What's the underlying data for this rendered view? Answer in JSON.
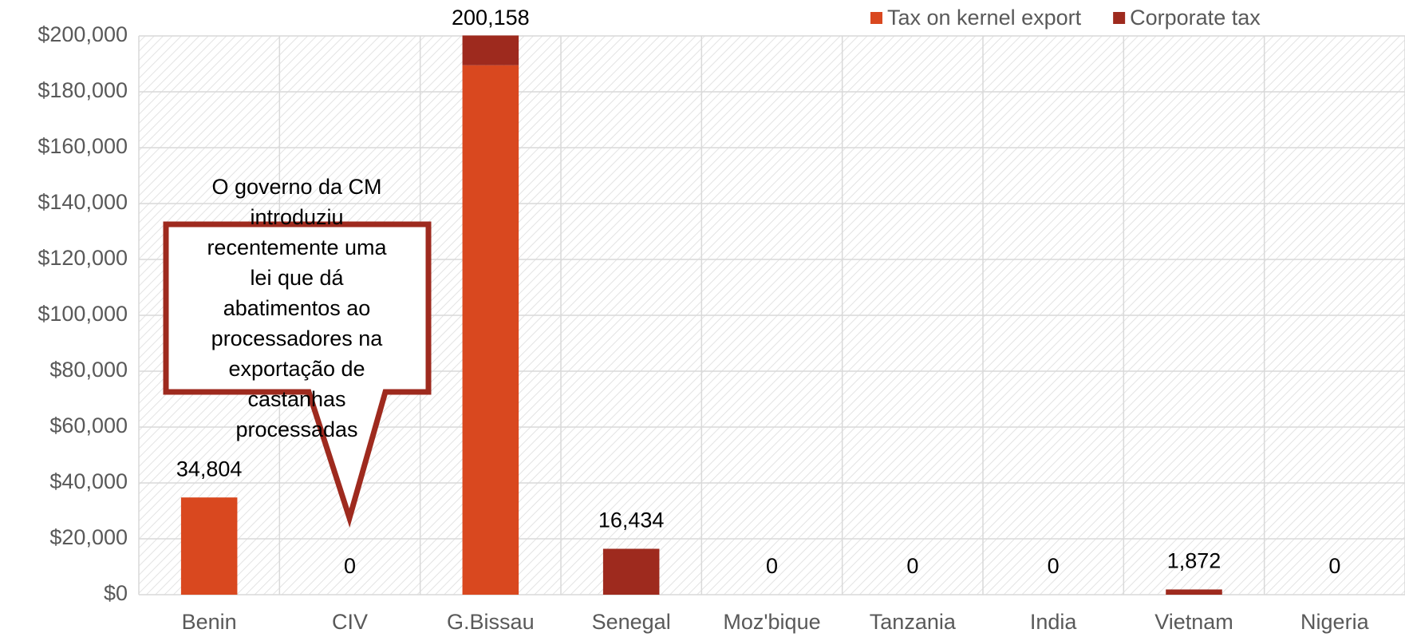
{
  "chart_data": {
    "type": "stacked_bar",
    "categories": [
      "Benin",
      "CIV",
      "G.Bissau",
      "Senegal",
      "Moz'bique",
      "Tanzania",
      "India",
      "Vietnam",
      "Nigeria"
    ],
    "series": [
      {
        "name": "Tax on kernel export",
        "color": "#d9481f",
        "values": [
          34804,
          0,
          189500,
          0,
          0,
          0,
          0,
          0,
          0
        ]
      },
      {
        "name": "Corporate tax",
        "color": "#9e2a1e",
        "values": [
          0,
          0,
          10658,
          16434,
          0,
          0,
          0,
          1872,
          0
        ]
      }
    ],
    "totals": [
      34804,
      0,
      200158,
      16434,
      0,
      0,
      0,
      1872,
      0
    ],
    "total_labels": [
      "34,804",
      "0",
      "200,158",
      "16,434",
      "0",
      "0",
      "0",
      "1,872",
      "0"
    ],
    "ylim": [
      0,
      200000
    ],
    "yticks": [
      {
        "value": 0,
        "label": "$0"
      },
      {
        "value": 20000,
        "label": "$20,000"
      },
      {
        "value": 40000,
        "label": "$40,000"
      },
      {
        "value": 60000,
        "label": "$60,000"
      },
      {
        "value": 80000,
        "label": "$80,000"
      },
      {
        "value": 100000,
        "label": "$100,000"
      },
      {
        "value": 120000,
        "label": "$120,000"
      },
      {
        "value": 140000,
        "label": "$140,000"
      },
      {
        "value": 160000,
        "label": "$160,000"
      },
      {
        "value": 180000,
        "label": "$180,000"
      },
      {
        "value": 200000,
        "label": "$200,000"
      }
    ],
    "grid": true,
    "legend": "top-right",
    "annotation": [
      "O governo da CM",
      "introduziu",
      "recentemente uma",
      "lei que dá",
      "abatimentos ao",
      "processadores na",
      "exportação de",
      "castanhas",
      "processadas"
    ]
  }
}
